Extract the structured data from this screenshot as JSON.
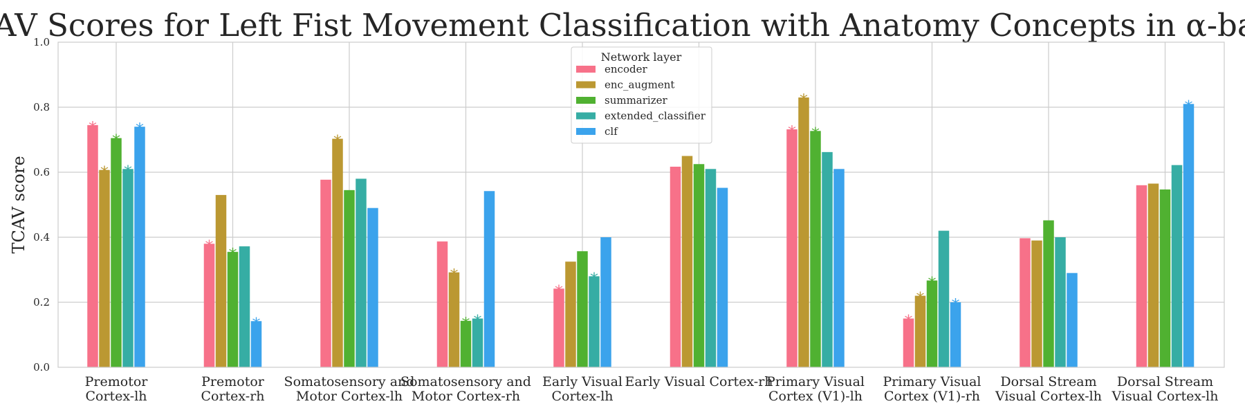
{
  "chart_data": {
    "type": "bar",
    "title": "TCAV Scores for Left Fist Movement Classification with Anatomy Concepts in α-band",
    "xlabel": "",
    "ylabel": "TCAV score",
    "ylim": [
      0,
      1.0
    ],
    "yticks": [
      "0.0",
      "0.2",
      "0.4",
      "0.6",
      "0.8",
      "1.0"
    ],
    "grid": true,
    "legend": {
      "title": "Network layer",
      "placement": "top-center"
    },
    "categories": [
      [
        "Premotor",
        "Cortex-lh"
      ],
      [
        "Premotor",
        "Cortex-rh"
      ],
      [
        "Somatosensory and",
        "Motor Cortex-lh"
      ],
      [
        "Somatosensory and",
        "Motor Cortex-rh"
      ],
      [
        "Early Visual",
        "Cortex-lh"
      ],
      [
        "Early Visual   Cortex-rh"
      ],
      [
        "Primary Visual",
        "Cortex (V1)-lh"
      ],
      [
        "Primary Visual",
        "Cortex (V1)-rh"
      ],
      [
        "Dorsal Stream",
        "Visual Cortex-lh"
      ],
      [
        "Dorsal Stream",
        "Visual Cortex-lh"
      ]
    ],
    "series": [
      {
        "name": "encoder",
        "color": "#f77189",
        "values": [
          0.745,
          0.38,
          0.577,
          0.387,
          0.242,
          0.617,
          0.732,
          0.15,
          0.397,
          0.56
        ],
        "significant": [
          true,
          true,
          false,
          false,
          true,
          false,
          true,
          true,
          false,
          false
        ]
      },
      {
        "name": "enc_augment",
        "color": "#bb9832",
        "values": [
          0.607,
          0.53,
          0.703,
          0.292,
          0.325,
          0.65,
          0.83,
          0.22,
          0.39,
          0.565
        ],
        "significant": [
          true,
          false,
          true,
          true,
          false,
          false,
          true,
          true,
          false,
          false
        ]
      },
      {
        "name": "summarizer",
        "color": "#50b131",
        "values": [
          0.705,
          0.355,
          0.545,
          0.143,
          0.357,
          0.625,
          0.727,
          0.267,
          0.452,
          0.547
        ],
        "significant": [
          true,
          true,
          false,
          true,
          false,
          false,
          true,
          true,
          false,
          false
        ]
      },
      {
        "name": "extended_classifier",
        "color": "#36ada4",
        "values": [
          0.61,
          0.372,
          0.58,
          0.15,
          0.28,
          0.61,
          0.662,
          0.42,
          0.4,
          0.622
        ],
        "significant": [
          true,
          false,
          false,
          true,
          true,
          false,
          false,
          false,
          false,
          false
        ]
      },
      {
        "name": "clf",
        "color": "#3ba3ec",
        "values": [
          0.74,
          0.142,
          0.49,
          0.542,
          0.4,
          0.552,
          0.61,
          0.2,
          0.29,
          0.81
        ],
        "significant": [
          true,
          true,
          false,
          false,
          false,
          false,
          false,
          true,
          false,
          true
        ]
      }
    ],
    "significance_marker": "*"
  }
}
